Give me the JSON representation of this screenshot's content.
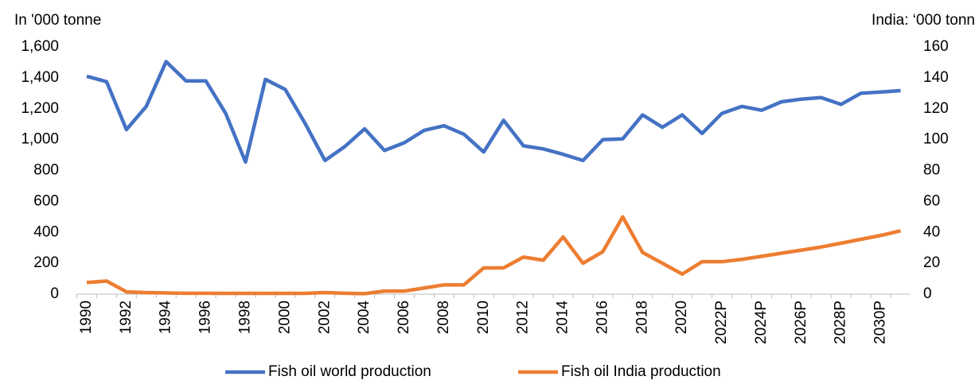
{
  "chart_data": {
    "type": "line",
    "y_label": "In '000 tonne",
    "y2_label": "India: ‘000 tonn",
    "categories": [
      "1990",
      null,
      "1992",
      null,
      "1994",
      null,
      "1996",
      null,
      "1998",
      null,
      "2000",
      null,
      "2002",
      null,
      "2004",
      null,
      "2006",
      null,
      "2008",
      null,
      "2010",
      null,
      "2012",
      null,
      "2014",
      null,
      "2016",
      null,
      "2018",
      null,
      "2020",
      null,
      "2022P",
      null,
      "2024P",
      null,
      "2026P",
      null,
      "2028P",
      null,
      "2030P",
      null
    ],
    "series": [
      {
        "name": "Fish oil world production",
        "color": "#4472c4",
        "values": [
          1410,
          1375,
          1065,
          1215,
          1505,
          1380,
          1380,
          1170,
          855,
          1390,
          1325,
          1105,
          865,
          955,
          1070,
          930,
          980,
          1060,
          1090,
          1035,
          920,
          1125,
          960,
          940,
          905,
          865,
          1000,
          1005,
          1160,
          1080,
          1160,
          1040,
          1170,
          1215,
          1190,
          1245,
          1262,
          1272,
          1228,
          1300,
          1308,
          1317
        ]
      },
      {
        "name": "Fish oil India production",
        "color": "#ed7d31",
        "axis": "y2",
        "values": [
          7.5,
          8.5,
          1.5,
          1,
          0.8,
          0.6,
          0.6,
          0.5,
          0.5,
          0.5,
          0.5,
          0.5,
          1,
          0.6,
          0.3,
          2,
          2,
          4,
          6,
          6,
          17,
          17,
          24,
          22,
          37,
          20,
          27.5,
          50,
          27,
          20,
          13,
          21,
          21,
          22.5,
          24.5,
          26.5,
          28.5,
          30.5,
          33,
          35.5,
          38,
          41
        ]
      }
    ],
    "ylim": [
      0,
      1600
    ],
    "yticks": [
      0,
      200,
      400,
      600,
      800,
      {
        "value": 1000,
        "label": "1,000"
      },
      {
        "value": 1200,
        "label": "1,200"
      },
      {
        "value": 1400,
        "label": "1,400"
      },
      {
        "value": 1600,
        "label": "1,600"
      }
    ],
    "y2lim": [
      0,
      160
    ],
    "y2ticks": [
      0,
      20,
      40,
      60,
      80,
      100,
      120,
      140,
      160
    ],
    "legend": "bottom"
  }
}
